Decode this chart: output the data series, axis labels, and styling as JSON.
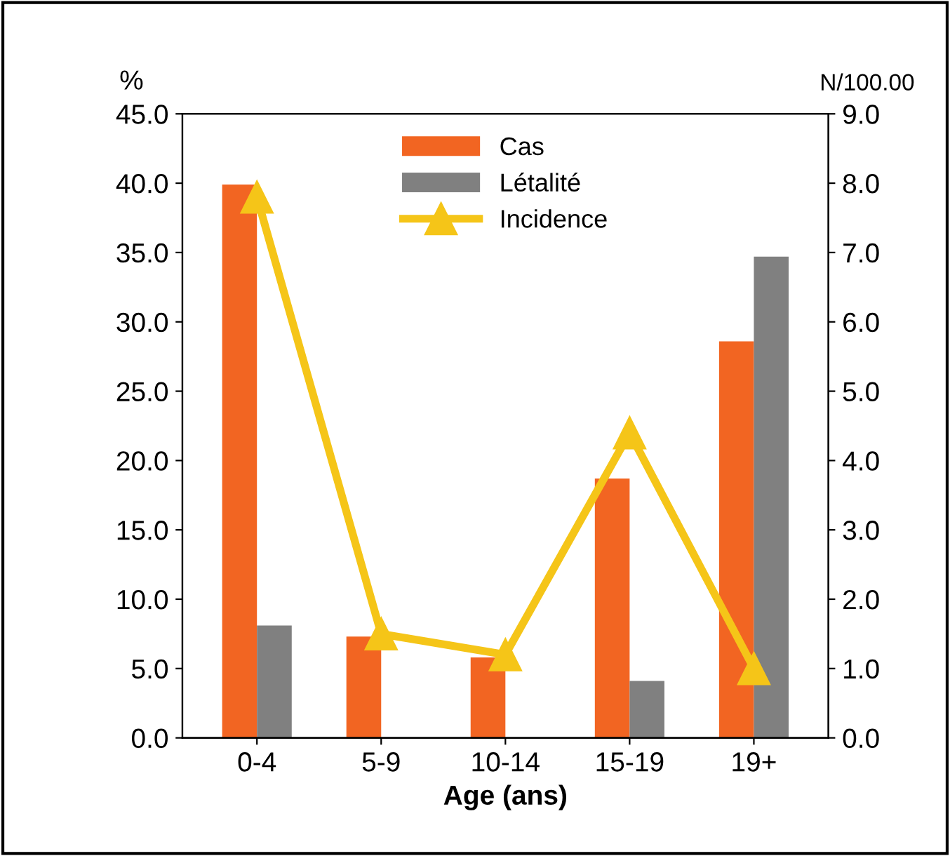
{
  "chart_data": {
    "type": "bar",
    "xlabel": "Age (ans)",
    "ylabel": "%",
    "y2label": "N/100.00",
    "categories": [
      "0-4",
      "5-9",
      "10-14",
      "15-19",
      "19+"
    ],
    "series": [
      {
        "name": "Cas",
        "color": "#f26522",
        "values": [
          39.9,
          7.3,
          5.8,
          18.7,
          28.6
        ]
      },
      {
        "name": "Létalité",
        "color": "#808080",
        "values": [
          8.1,
          null,
          null,
          4.1,
          34.7
        ]
      },
      {
        "name": "Incidence",
        "type": "line",
        "axis": "y2",
        "color": "#f5c518",
        "marker": "triangle",
        "values": [
          7.8,
          1.5,
          1.2,
          4.4,
          1.0
        ]
      }
    ],
    "ylim": [
      0,
      45
    ],
    "yticks": [
      {
        "value": 0,
        "label": "0.0"
      },
      {
        "value": 5,
        "label": "5.0"
      },
      {
        "value": 10,
        "label": "10.0"
      },
      {
        "value": 15,
        "label": "15.0"
      },
      {
        "value": 20,
        "label": "20.0"
      },
      {
        "value": 25,
        "label": "25.0"
      },
      {
        "value": 30,
        "label": "30.0"
      },
      {
        "value": 35,
        "label": "35.0"
      },
      {
        "value": 40,
        "label": "40.0"
      },
      {
        "value": 45,
        "label": "45.0"
      }
    ],
    "y2lim": [
      0,
      9
    ],
    "y2ticks": [
      {
        "value": 0,
        "label": "0.0"
      },
      {
        "value": 1,
        "label": "1.0"
      },
      {
        "value": 2,
        "label": "2.0"
      },
      {
        "value": 3,
        "label": "3.0"
      },
      {
        "value": 4,
        "label": "4.0"
      },
      {
        "value": 5,
        "label": "5.0"
      },
      {
        "value": 6,
        "label": "6.0"
      },
      {
        "value": 7,
        "label": "7.0"
      },
      {
        "value": 8,
        "label": "8.0"
      },
      {
        "value": 9,
        "label": "9.0"
      }
    ],
    "legend": "top",
    "grid": false
  }
}
